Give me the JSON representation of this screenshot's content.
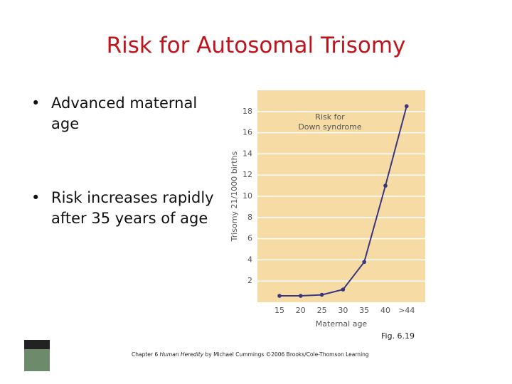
{
  "title": "Risk for Autosomal Trisomy",
  "bullets": [
    "Advanced maternal age",
    "Risk increases rapidly after 35 years of age"
  ],
  "figure_label": "Fig. 6.19",
  "footer": {
    "before": "Chapter 6 ",
    "italic": "Human Heredity",
    "after": " by Michael Cummings ©2006 Brooks/Cole-Thomson Learning"
  },
  "chart_data": {
    "type": "line",
    "annotation": [
      "Risk for",
      "Down syndrome"
    ],
    "x_label": "Maternal age",
    "y_label": "Trisomy 21/1000 births",
    "categories": [
      "15",
      "20",
      "25",
      "30",
      "35",
      "40",
      ">44"
    ],
    "values": [
      0.6,
      0.6,
      0.7,
      1.2,
      3.8,
      11,
      18.5
    ],
    "color": "#3a3580",
    "ylim": [
      0,
      20
    ],
    "yticks": [
      2,
      4,
      6,
      8,
      10,
      12,
      14,
      16,
      18
    ],
    "grid": true
  }
}
